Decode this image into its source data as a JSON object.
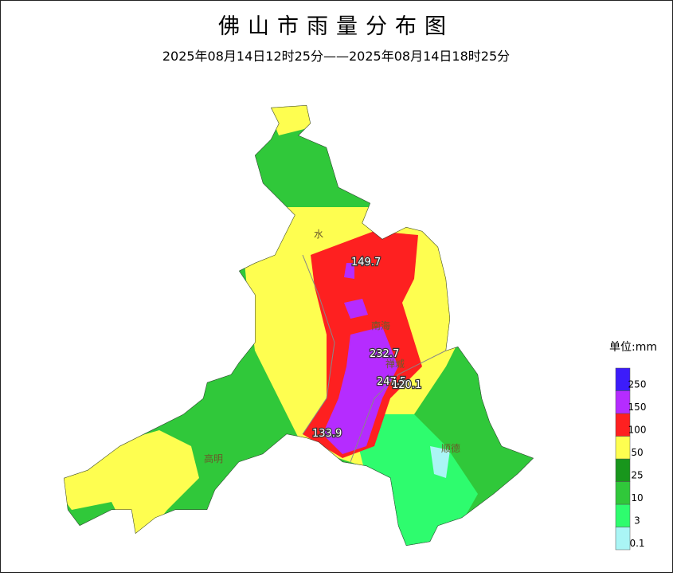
{
  "header": {
    "title": "佛山市雨量分布图",
    "subtitle": "2025年08月14日12时25分——2025年08月14日18时25分"
  },
  "legend": {
    "unit": "单位:mm",
    "items": [
      {
        "label": "0.1",
        "color": "#aaf5f5"
      },
      {
        "label": "3",
        "color": "#2efc6e"
      },
      {
        "label": "10",
        "color": "#30c83a"
      },
      {
        "label": "25",
        "color": "#18961c"
      },
      {
        "label": "50",
        "color": "#fefe50"
      },
      {
        "label": "100",
        "color": "#fe2020"
      },
      {
        "label": "150",
        "color": "#b52cff"
      },
      {
        "label": "250",
        "color": "#3c1cfa"
      }
    ]
  },
  "stations": [
    "149.7",
    "232.7",
    "247.5",
    "120.1",
    "133.9"
  ],
  "districts": [
    "水",
    "南海",
    "禅城",
    "高明",
    "顺德"
  ]
}
